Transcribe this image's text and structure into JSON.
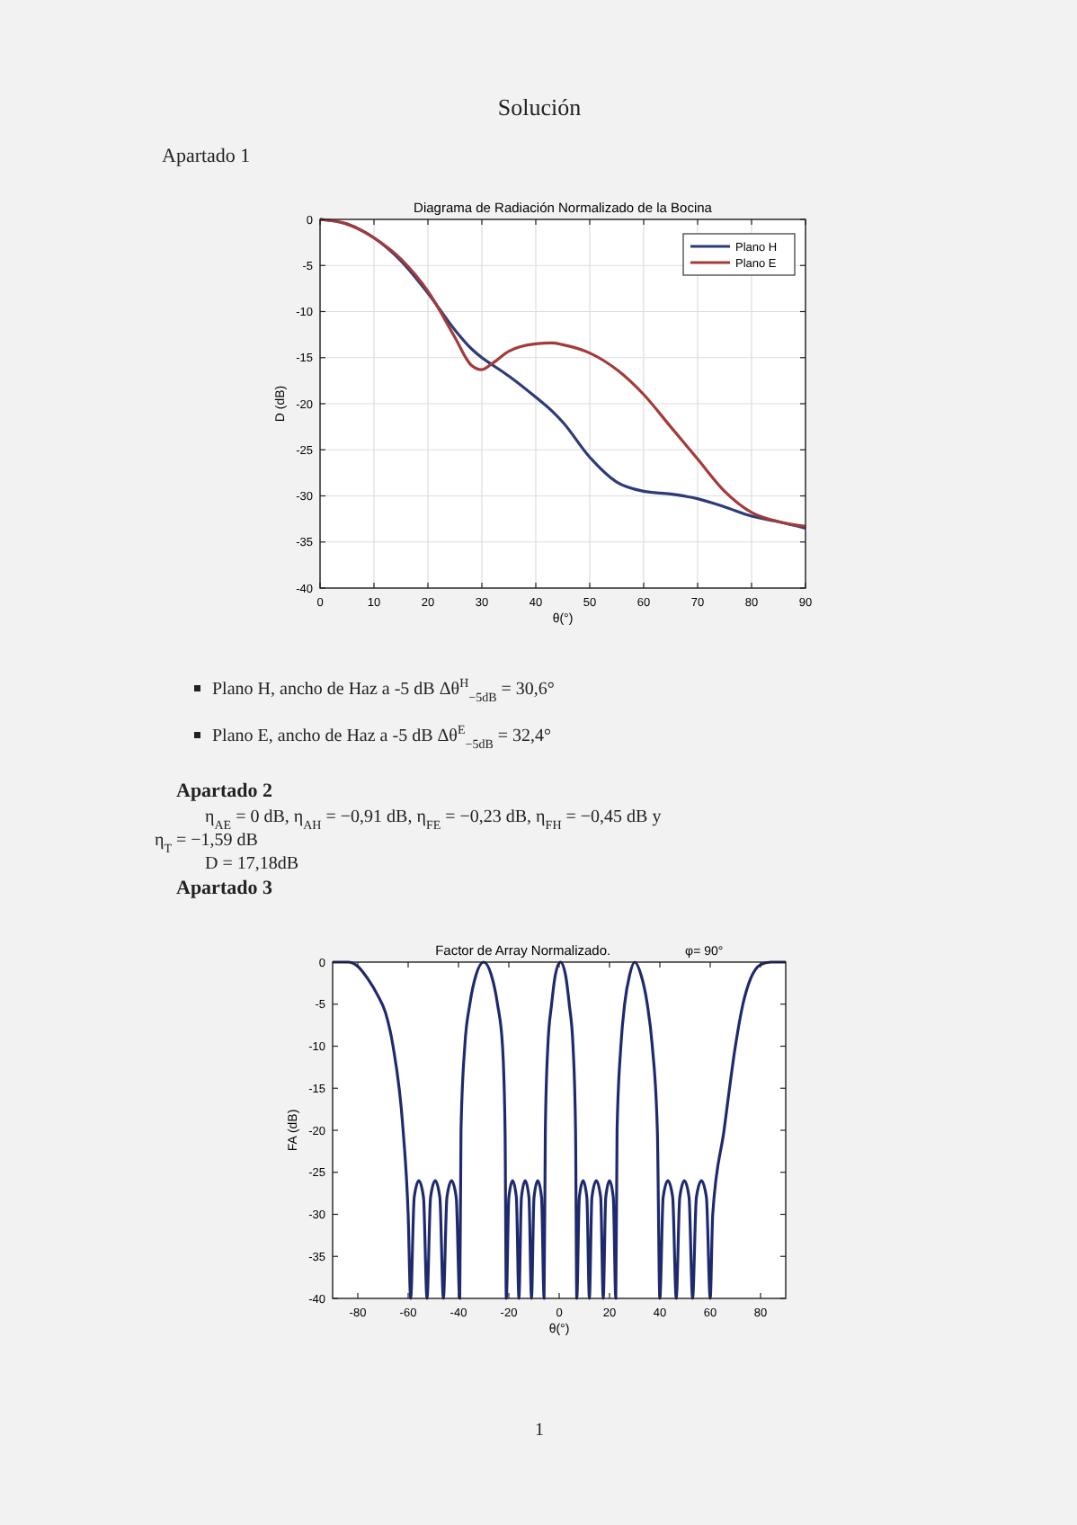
{
  "chart_data": [
    {
      "type": "line",
      "title": "Diagrama de Radiación Normalizado de la Bocina",
      "xlabel": "θ(°)",
      "ylabel": "D (dB)",
      "xlim": [
        0,
        90
      ],
      "ylim": [
        -40,
        0
      ],
      "xticks": [
        0,
        10,
        20,
        30,
        40,
        50,
        60,
        70,
        80,
        90
      ],
      "yticks": [
        -40,
        -35,
        -30,
        -25,
        -20,
        -15,
        -10,
        -5,
        0
      ],
      "grid": true,
      "legend": "top right",
      "x": [
        0,
        5,
        10,
        15,
        20,
        25,
        28,
        30,
        32,
        35,
        40,
        43,
        45,
        50,
        55,
        60,
        65,
        70,
        75,
        80,
        85,
        90
      ],
      "series": [
        {
          "name": "Plano H",
          "color": "#2e3b78",
          "values": [
            0,
            -0.5,
            -2,
            -4.5,
            -8,
            -12,
            -14,
            -15,
            -15.8,
            -17,
            -19.3,
            -20.8,
            -22,
            -25.8,
            -28.5,
            -29.5,
            -29.8,
            -30.3,
            -31.2,
            -32.2,
            -32.8,
            -33.5
          ]
        },
        {
          "name": "Plano E",
          "color": "#a33b3b",
          "values": [
            0,
            -0.5,
            -2,
            -4.3,
            -7.8,
            -12.8,
            -15.8,
            -16.3,
            -15.6,
            -14.3,
            -13.5,
            -13.4,
            -13.6,
            -14.5,
            -16.3,
            -19,
            -22.5,
            -26,
            -29.5,
            -31.8,
            -32.8,
            -33.3
          ]
        }
      ],
      "annotations": [
        "Solución",
        "Apartado 1",
        "Plano H, ancho de Haz a -5 dB Δθ$^{H}$$_{−5dB}$ = 30,6°",
        "Plano E, ancho de Haz a -5 dB Δθ$^{E}$$_{−5dB}$ = 32,4°",
        "Apartado 2",
        "η$_{AE}$ = 0 dB, η$_{AH}$ = −0,91 dB, η$_{FE}$ = −0,23 dB, η$_{FH}$ = −0,45 dB y",
        "η$_{T}$ = −1,59 dB",
        "D = 17,18dB"
      ]
    },
    {
      "type": "line",
      "title": "Factor de Array Normalizado.",
      "subtitle": "φ= 90°",
      "xlabel": "θ(°)",
      "ylabel": "FA (dB)",
      "xlim": [
        -90,
        90
      ],
      "ylim": [
        -40,
        0
      ],
      "xticks": [
        -80,
        -60,
        -40,
        -20,
        0,
        20,
        40,
        60,
        80
      ],
      "yticks": [
        -40,
        -35,
        -30,
        -25,
        -20,
        -15,
        -10,
        -5,
        0
      ],
      "x": [
        -90,
        -84,
        -80,
        -76,
        -72,
        -69,
        -66,
        -62,
        -60,
        -59,
        -57.6,
        -55.75,
        -53.9,
        -52.5,
        -51.1,
        -49.25,
        -47.4,
        -46,
        -44.6,
        -42.75,
        -40.9,
        -39.5,
        -39,
        -37.5,
        -35.5,
        -33,
        -30,
        -27,
        -24.5,
        -22.5,
        -21.5,
        -21,
        -20,
        -18.5,
        -17,
        -16,
        -15,
        -13.5,
        -12,
        -11,
        -10,
        -8.5,
        -7,
        -6,
        -5.5,
        -4.5,
        -3,
        -1.5,
        0.5,
        2.5,
        4,
        5.5,
        6.5,
        7,
        8,
        9.5,
        11,
        12,
        13,
        14.75,
        16.5,
        17.5,
        18.5,
        20,
        21.5,
        22.5,
        23,
        24.5,
        26,
        28,
        30,
        32.5,
        35,
        37,
        39,
        40,
        41.3,
        43.2,
        45.1,
        46.5,
        47.9,
        49.75,
        51.6,
        53,
        54.5,
        56.5,
        58.5,
        60,
        61,
        65.5,
        70,
        73,
        76,
        80,
        84,
        90
      ],
      "series": [
        {
          "color": "#1f2a6e",
          "values": [
            0,
            0,
            -0.5,
            -2,
            -4,
            -6,
            -10,
            -20,
            -30,
            -40,
            -28,
            -26,
            -28,
            -40,
            -28,
            -26,
            -28,
            -40,
            -28,
            -26,
            -28,
            -40,
            -20,
            -10,
            -5,
            -1.5,
            0,
            -1.5,
            -5,
            -10,
            -20,
            -40,
            -28,
            -26,
            -28,
            -40,
            -28,
            -26,
            -28,
            -40,
            -28,
            -26,
            -28,
            -40,
            -20,
            -10,
            -5,
            -1.5,
            0,
            -1.5,
            -5,
            -10,
            -20,
            -40,
            -28,
            -26,
            -28,
            -40,
            -28,
            -26,
            -28,
            -40,
            -28,
            -26,
            -28,
            -40,
            -20,
            -10,
            -5,
            -1.5,
            0,
            -1.5,
            -5,
            -10,
            -20,
            -40,
            -28,
            -26,
            -28,
            -40,
            -28,
            -26,
            -28,
            -40,
            -28,
            -26,
            -28,
            -40,
            -30,
            -20,
            -10,
            -5,
            -2,
            -0.3,
            0,
            0
          ]
        }
      ],
      "annotations": [
        "Apartado 3",
        "1"
      ]
    }
  ]
}
